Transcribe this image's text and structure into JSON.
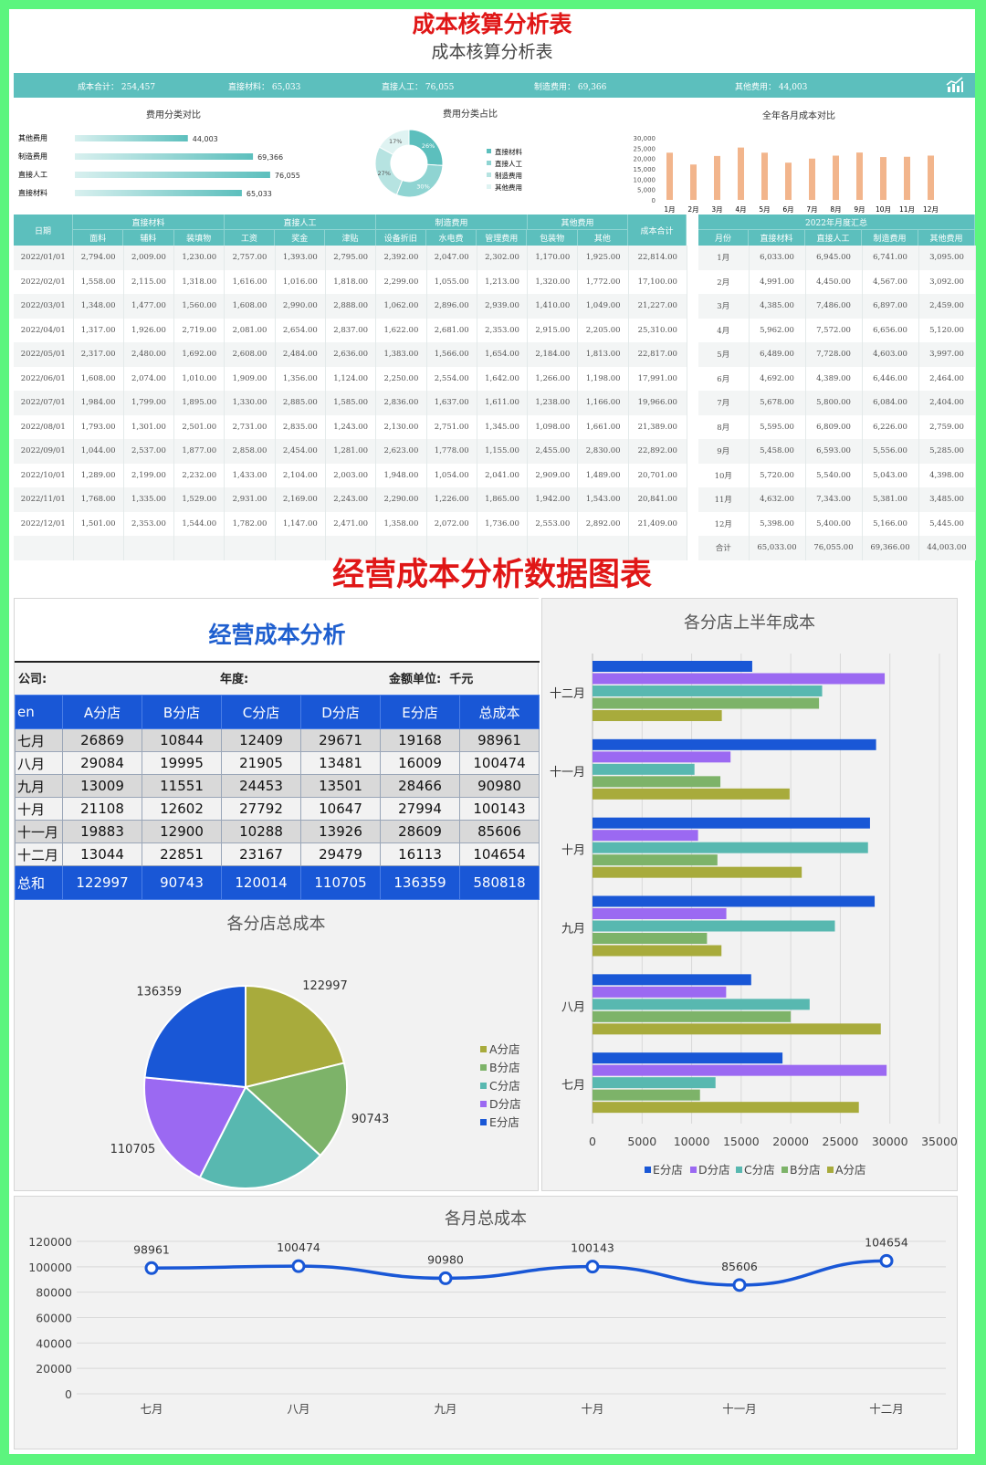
{
  "header": {
    "red_title": "成本核算分析表",
    "subtitle": "成本核算分析表"
  },
  "summary": [
    {
      "label": "成本合计：",
      "value": "254,457"
    },
    {
      "label": "直接材料：",
      "value": "65,033"
    },
    {
      "label": "直接人工：",
      "value": "76,055"
    },
    {
      "label": "制造费用：",
      "value": "69,366"
    },
    {
      "label": "其他费用：",
      "value": "44,003"
    }
  ],
  "icons": {
    "summary_icon": "trend-chart-icon"
  },
  "colors": {
    "teal": "#5cbfbd",
    "blue": "#1957d6",
    "red": "#e01717",
    "orange": "#f2b58c",
    "green_border": "#5cf57e"
  },
  "chart_data": [
    {
      "type": "bar",
      "title": "费用分类对比",
      "orientation": "horizontal",
      "categories": [
        "其他费用",
        "制造费用",
        "直接人工",
        "直接材料"
      ],
      "values": [
        44003,
        69366,
        76055,
        65033
      ],
      "value_labels": [
        "44,003",
        "69,366",
        "76,055",
        "65,033"
      ]
    },
    {
      "type": "pie",
      "title": "费用分类占比",
      "donut": true,
      "labels": [
        "直接材料",
        "直接人工",
        "制造费用",
        "其他费用"
      ],
      "values": [
        26,
        30,
        27,
        17
      ],
      "value_labels": [
        "26%",
        "30%",
        "27%",
        "17%"
      ],
      "colors": [
        "#5cbfbd",
        "#8fd4d2",
        "#b6e3e1",
        "#dff3f2"
      ]
    },
    {
      "type": "bar",
      "title": "全年各月成本对比",
      "categories": [
        "1月",
        "2月",
        "3月",
        "4月",
        "5月",
        "6月",
        "7月",
        "8月",
        "9月",
        "10月",
        "11月",
        "12月"
      ],
      "values": [
        22814,
        17100,
        21227,
        25310,
        22817,
        17991,
        19966,
        21389,
        22892,
        20701,
        20841,
        21409
      ],
      "ylim": [
        0,
        30000
      ],
      "yticks": [
        "30,000",
        "25,000",
        "20,000",
        "15,000",
        "10,000",
        "5,000",
        "0"
      ]
    },
    {
      "type": "pie",
      "title": "各分店总成本",
      "labels": [
        "A分店",
        "B分店",
        "C分店",
        "D分店",
        "E分店"
      ],
      "values": [
        122997,
        90743,
        120014,
        110705,
        136359
      ],
      "colors": [
        "#a8ab3c",
        "#7db369",
        "#58b8b0",
        "#9b69f2",
        "#1957d6"
      ],
      "legend": "right"
    },
    {
      "type": "bar",
      "title": "各分店上半年成本",
      "orientation": "horizontal",
      "categories": [
        "七月",
        "八月",
        "九月",
        "十月",
        "十一月",
        "十二月"
      ],
      "series": [
        {
          "name": "E分店",
          "values": [
            19168,
            16009,
            28466,
            27994,
            28609,
            16113
          ]
        },
        {
          "name": "D分店",
          "values": [
            29671,
            13481,
            13501,
            10647,
            13926,
            29479
          ]
        },
        {
          "name": "C分店",
          "values": [
            12409,
            21905,
            24453,
            27792,
            10288,
            23167
          ]
        },
        {
          "name": "B分店",
          "values": [
            10844,
            19995,
            11551,
            12602,
            12900,
            22851
          ]
        },
        {
          "name": "A分店",
          "values": [
            26869,
            29084,
            13009,
            21108,
            19883,
            13044
          ]
        }
      ],
      "xlim": [
        0,
        35000
      ],
      "xticks": [
        "0",
        "5000",
        "10000",
        "15000",
        "20000",
        "25000",
        "30000",
        "35000"
      ],
      "legend": "bottom"
    },
    {
      "type": "line",
      "title": "各月总成本",
      "categories": [
        "七月",
        "八月",
        "九月",
        "十月",
        "十一月",
        "十二月"
      ],
      "values": [
        98961,
        100474,
        90980,
        100143,
        85606,
        104654
      ],
      "ylim": [
        0,
        120000
      ],
      "yticks": [
        "120000",
        "100000",
        "80000",
        "60000",
        "40000",
        "20000",
        "0"
      ]
    }
  ],
  "detail_table": {
    "groups": [
      "日期",
      "直接材料",
      "直接人工",
      "制造费用",
      "其他费用",
      "成本合计"
    ],
    "columns": [
      "面料",
      "辅料",
      "装填物",
      "工资",
      "奖金",
      "津贴",
      "设备折旧",
      "水电费",
      "管理费用",
      "包装物",
      "其他"
    ],
    "rows": [
      [
        "2022/01/01",
        "2,794.00",
        "2,009.00",
        "1,230.00",
        "2,757.00",
        "1,393.00",
        "2,795.00",
        "2,392.00",
        "2,047.00",
        "2,302.00",
        "1,170.00",
        "1,925.00",
        "22,814.00"
      ],
      [
        "2022/02/01",
        "1,558.00",
        "2,115.00",
        "1,318.00",
        "1,616.00",
        "1,016.00",
        "1,818.00",
        "2,299.00",
        "1,055.00",
        "1,213.00",
        "1,320.00",
        "1,772.00",
        "17,100.00"
      ],
      [
        "2022/03/01",
        "1,348.00",
        "1,477.00",
        "1,560.00",
        "1,608.00",
        "2,990.00",
        "2,888.00",
        "1,062.00",
        "2,896.00",
        "2,939.00",
        "1,410.00",
        "1,049.00",
        "21,227.00"
      ],
      [
        "2022/04/01",
        "1,317.00",
        "1,926.00",
        "2,719.00",
        "2,081.00",
        "2,654.00",
        "2,837.00",
        "1,622.00",
        "2,681.00",
        "2,353.00",
        "2,915.00",
        "2,205.00",
        "25,310.00"
      ],
      [
        "2022/05/01",
        "2,317.00",
        "2,480.00",
        "1,692.00",
        "2,608.00",
        "2,484.00",
        "2,636.00",
        "1,383.00",
        "1,566.00",
        "1,654.00",
        "2,184.00",
        "1,813.00",
        "22,817.00"
      ],
      [
        "2022/06/01",
        "1,608.00",
        "2,074.00",
        "1,010.00",
        "1,909.00",
        "1,356.00",
        "1,124.00",
        "2,250.00",
        "2,554.00",
        "1,642.00",
        "1,266.00",
        "1,198.00",
        "17,991.00"
      ],
      [
        "2022/07/01",
        "1,984.00",
        "1,799.00",
        "1,895.00",
        "1,330.00",
        "2,885.00",
        "1,585.00",
        "2,836.00",
        "1,637.00",
        "1,611.00",
        "1,238.00",
        "1,166.00",
        "19,966.00"
      ],
      [
        "2022/08/01",
        "1,793.00",
        "1,301.00",
        "2,501.00",
        "2,731.00",
        "2,835.00",
        "1,243.00",
        "2,130.00",
        "2,751.00",
        "1,345.00",
        "1,098.00",
        "1,661.00",
        "21,389.00"
      ],
      [
        "2022/09/01",
        "1,044.00",
        "2,537.00",
        "1,877.00",
        "2,858.00",
        "2,454.00",
        "1,281.00",
        "2,623.00",
        "1,778.00",
        "1,155.00",
        "2,455.00",
        "2,830.00",
        "22,892.00"
      ],
      [
        "2022/10/01",
        "1,289.00",
        "2,199.00",
        "2,232.00",
        "1,433.00",
        "2,104.00",
        "2,003.00",
        "1,948.00",
        "1,054.00",
        "2,041.00",
        "2,909.00",
        "1,489.00",
        "20,701.00"
      ],
      [
        "2022/11/01",
        "1,768.00",
        "1,335.00",
        "1,529.00",
        "2,931.00",
        "2,169.00",
        "2,243.00",
        "2,290.00",
        "1,226.00",
        "1,865.00",
        "1,942.00",
        "1,543.00",
        "20,841.00"
      ],
      [
        "2022/12/01",
        "1,501.00",
        "2,353.00",
        "1,544.00",
        "1,782.00",
        "1,147.00",
        "2,471.00",
        "1,358.00",
        "2,072.00",
        "1,736.00",
        "2,553.00",
        "2,892.00",
        "21,409.00"
      ]
    ]
  },
  "monthly_table": {
    "title": "2022年月度汇总",
    "columns": [
      "月份",
      "直接材料",
      "直接人工",
      "制造费用",
      "其他费用"
    ],
    "rows": [
      [
        "1月",
        "6,033.00",
        "6,945.00",
        "6,741.00",
        "3,095.00"
      ],
      [
        "2月",
        "4,991.00",
        "4,450.00",
        "4,567.00",
        "3,092.00"
      ],
      [
        "3月",
        "4,385.00",
        "7,486.00",
        "6,897.00",
        "2,459.00"
      ],
      [
        "4月",
        "5,962.00",
        "7,572.00",
        "6,656.00",
        "5,120.00"
      ],
      [
        "5月",
        "6,489.00",
        "7,728.00",
        "4,603.00",
        "3,997.00"
      ],
      [
        "6月",
        "4,692.00",
        "4,389.00",
        "6,446.00",
        "2,464.00"
      ],
      [
        "7月",
        "5,678.00",
        "5,800.00",
        "6,084.00",
        "2,404.00"
      ],
      [
        "8月",
        "5,595.00",
        "6,809.00",
        "6,226.00",
        "2,759.00"
      ],
      [
        "9月",
        "5,458.00",
        "6,593.00",
        "5,556.00",
        "5,285.00"
      ],
      [
        "10月",
        "5,720.00",
        "5,540.00",
        "5,043.00",
        "4,398.00"
      ],
      [
        "11月",
        "4,632.00",
        "7,343.00",
        "5,381.00",
        "3,485.00"
      ],
      [
        "12月",
        "5,398.00",
        "5,400.00",
        "5,166.00",
        "5,445.00"
      ]
    ],
    "total": [
      "合计",
      "65,033.00",
      "76,055.00",
      "69,366.00",
      "44,003.00"
    ]
  },
  "section2": {
    "title": "经营成本分析数据图表"
  },
  "shop_table": {
    "title": "经营成本分析",
    "meta": {
      "company": "公司:",
      "year": "年度:",
      "unit_label": "金额单位:",
      "unit_value": "千元"
    },
    "header": [
      "en",
      "A分店",
      "B分店",
      "C分店",
      "D分店",
      "E分店",
      "总成本"
    ],
    "rows": [
      [
        "七月",
        "26869",
        "10844",
        "12409",
        "29671",
        "19168",
        "98961"
      ],
      [
        "八月",
        "29084",
        "19995",
        "21905",
        "13481",
        "16009",
        "100474"
      ],
      [
        "九月",
        "13009",
        "11551",
        "24453",
        "13501",
        "28466",
        "90980"
      ],
      [
        "十月",
        "21108",
        "12602",
        "27792",
        "10647",
        "27994",
        "100143"
      ],
      [
        "十一月",
        "19883",
        "12900",
        "10288",
        "13926",
        "28609",
        "85606"
      ],
      [
        "十二月",
        "13044",
        "22851",
        "23167",
        "29479",
        "16113",
        "104654"
      ]
    ],
    "total": [
      "总和",
      "122997",
      "90743",
      "120014",
      "110705",
      "136359",
      "580818"
    ]
  }
}
